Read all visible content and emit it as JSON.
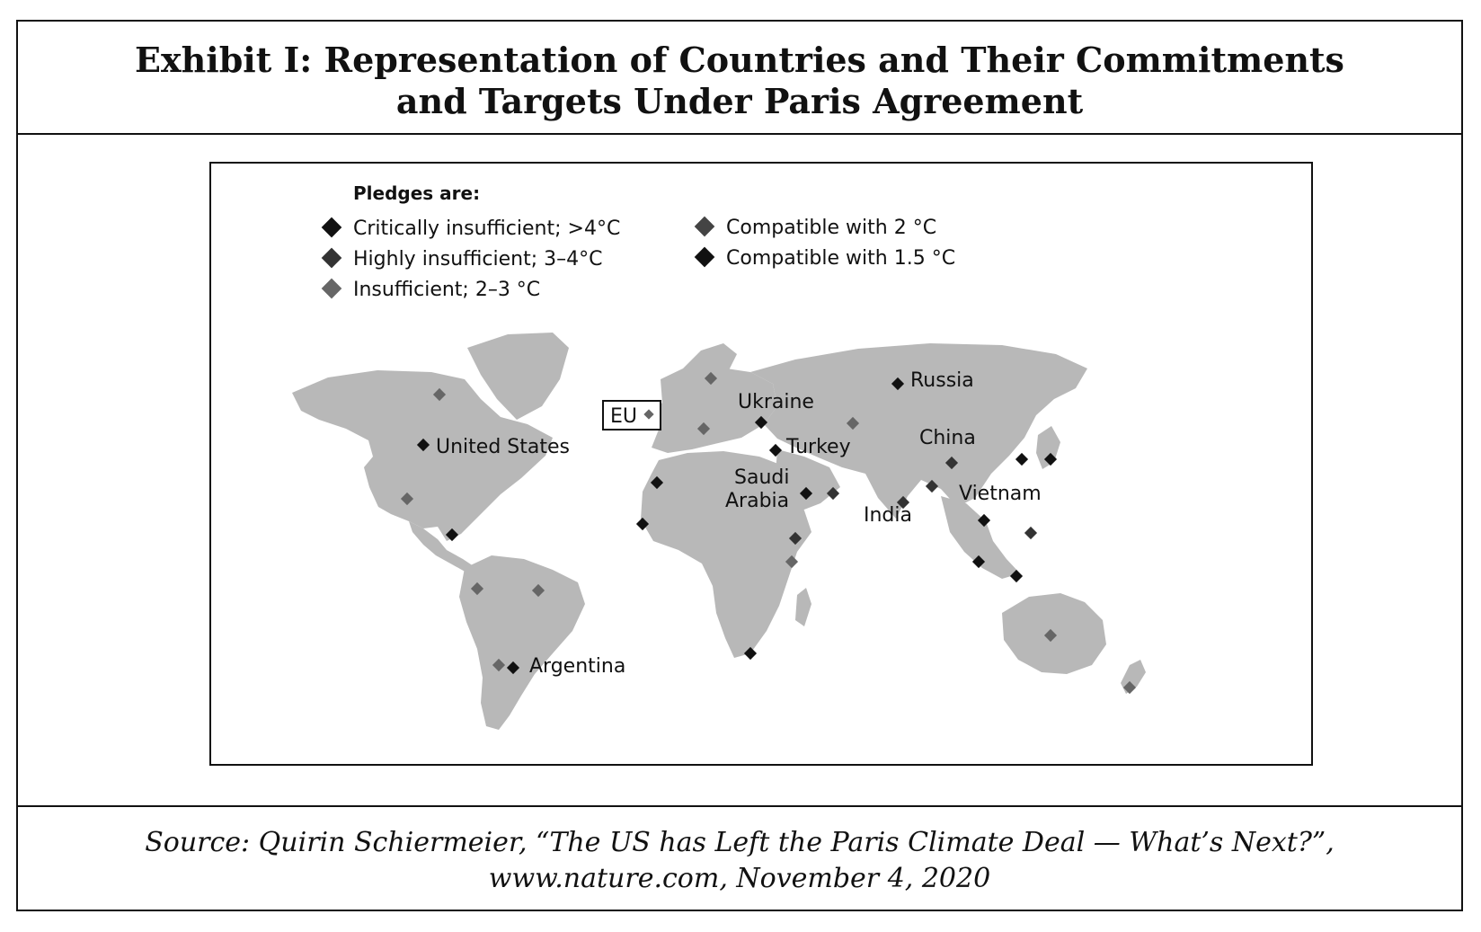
{
  "title": {
    "line1": "Exhibit I: Representation of Countries and Their Commitments",
    "line2": "and Targets Under Paris Agreement"
  },
  "legend": {
    "heading": "Pledges are:",
    "items": [
      {
        "label": "Critically insufficient; >4°C",
        "color": "#111111"
      },
      {
        "label": "Highly insufficient; 3–4°C",
        "color": "#333333"
      },
      {
        "label": "Insufficient; 2–3 °C",
        "color": "#666666"
      },
      {
        "label": "Compatible with 2 °C",
        "color": "#444444"
      },
      {
        "label": "Compatible with 1.5 °C",
        "color": "#111111"
      }
    ]
  },
  "map": {
    "land_color": "#b8b8b8",
    "labels": {
      "russia": "Russia",
      "ukraine": "Ukraine",
      "eu": "EU",
      "united_states": "United States",
      "turkey": "Turkey",
      "china": "China",
      "saudi_line1": "Saudi",
      "saudi_line2": "Arabia",
      "vietnam": "Vietnam",
      "india": "India",
      "argentina": "Argentina"
    }
  },
  "source": {
    "line1": "Source: Quirin Schiermeier, “The US has Left the Paris Climate Deal — What’s Next?”,",
    "line2": "www.nature.com, November 4, 2020"
  }
}
